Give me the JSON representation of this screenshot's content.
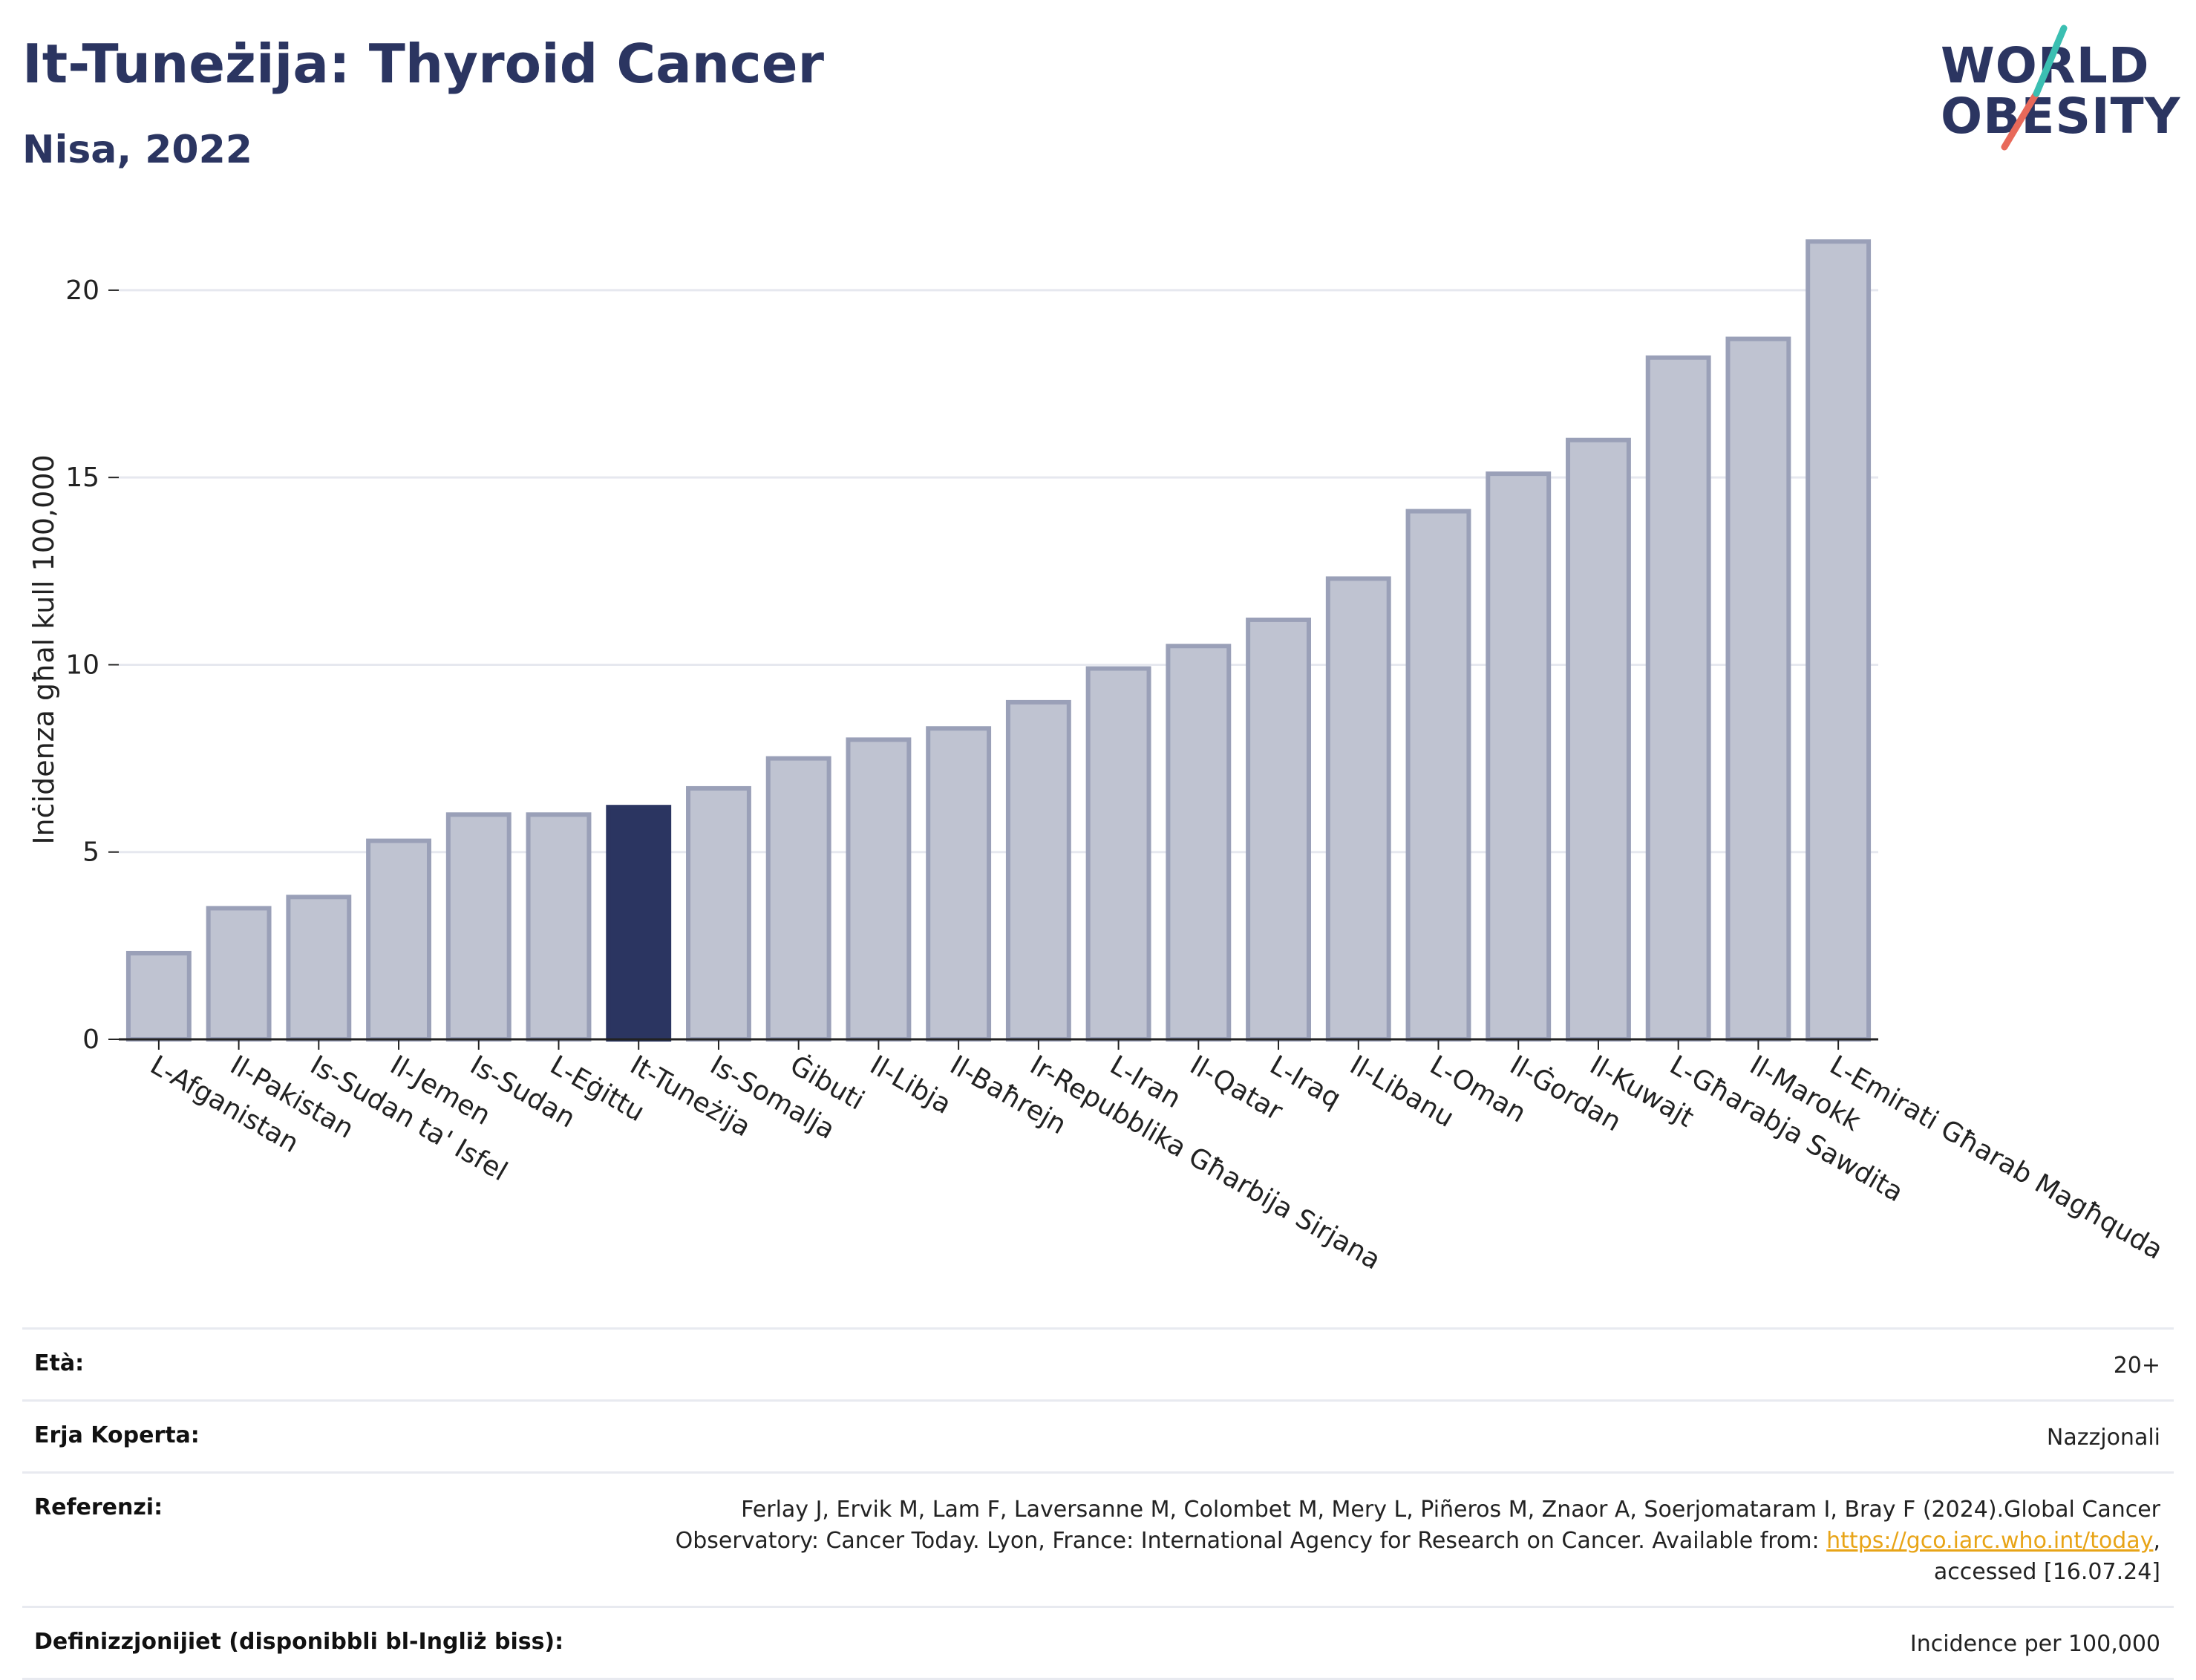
{
  "header": {
    "title": "It-Tuneżija: Thyroid Cancer",
    "subtitle": "Nisa, 2022"
  },
  "logo": {
    "line1": "WORLD",
    "line2": "OBESITY"
  },
  "chart_data": {
    "type": "bar",
    "title": "It-Tuneżija: Thyroid Cancer",
    "subtitle": "Nisa, 2022",
    "ylabel": "Inċidenza għal kull 100,000",
    "xlabel": "",
    "ylim": [
      0,
      22
    ],
    "yticks": [
      0,
      5,
      10,
      15,
      20
    ],
    "grid": true,
    "highlight_category": "It-Tuneżija",
    "colors": {
      "bar": "#bfc3d1",
      "bar_border": "#9aa0b8",
      "highlight": "#2b3561",
      "grid": "#e6e8ef"
    },
    "categories": [
      "L-Afganistan",
      "Il-Pakistan",
      "Is-Sudan ta' Isfel",
      "Il-Jemen",
      "Is-Sudan",
      "L-Eġittu",
      "It-Tuneżija",
      "Is-Somalja",
      "Ġibuti",
      "Il-Libja",
      "Il-Baħrejn",
      "Ir-Repubblika Għarbija Sirjana",
      "L-Iran",
      "Il-Qatar",
      "L-Iraq",
      "Il-Libanu",
      "L-Oman",
      "Il-Ġordan",
      "Il-Kuwajt",
      "L-Għarabja Sawdita",
      "Il-Marokk",
      "L-Emirati Għarab Magħquda"
    ],
    "values": [
      2.3,
      3.5,
      3.8,
      5.3,
      6.0,
      6.0,
      6.2,
      6.7,
      7.5,
      8.0,
      8.3,
      9.0,
      9.9,
      10.5,
      11.2,
      12.3,
      14.1,
      15.1,
      16.0,
      18.2,
      18.7,
      21.3
    ]
  },
  "meta": [
    {
      "label": "Età:",
      "value": "20+"
    },
    {
      "label": "Erja Koperta:",
      "value": "Nazzjonali"
    },
    {
      "label": "Referenzi:",
      "value_line1": "Ferlay J, Ervik M, Lam F, Laversanne M, Colombet M, Mery L, Piñeros M, Znaor A, Soerjomataram I, Bray F (2024).Global Cancer",
      "value_line2_pre": "Observatory: Cancer Today. Lyon, France: International Agency for Research on Cancer. Available from: ",
      "link": "https://gco.iarc.who.int/today",
      "value_line2_post": ",",
      "value_line3": "accessed [16.07.24]"
    },
    {
      "label": "Definizzjonijiet (disponibbli bl-Ingliż biss):",
      "value": "Incidence per 100,000"
    }
  ]
}
